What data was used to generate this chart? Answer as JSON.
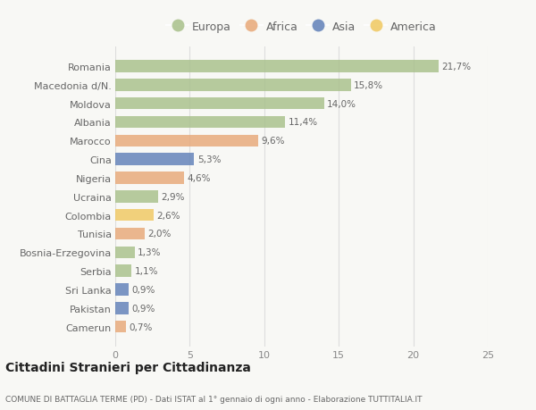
{
  "categories": [
    "Romania",
    "Macedonia d/N.",
    "Moldova",
    "Albania",
    "Marocco",
    "Cina",
    "Nigeria",
    "Ucraina",
    "Colombia",
    "Tunisia",
    "Bosnia-Erzegovina",
    "Serbia",
    "Sri Lanka",
    "Pakistan",
    "Camerun"
  ],
  "values": [
    21.7,
    15.8,
    14.0,
    11.4,
    9.6,
    5.3,
    4.6,
    2.9,
    2.6,
    2.0,
    1.3,
    1.1,
    0.9,
    0.9,
    0.7
  ],
  "labels": [
    "21,7%",
    "15,8%",
    "14,0%",
    "11,4%",
    "9,6%",
    "5,3%",
    "4,6%",
    "2,9%",
    "2,6%",
    "2,0%",
    "1,3%",
    "1,1%",
    "0,9%",
    "0,9%",
    "0,7%"
  ],
  "continents": [
    "Europa",
    "Europa",
    "Europa",
    "Europa",
    "Africa",
    "Asia",
    "Africa",
    "Europa",
    "America",
    "Africa",
    "Europa",
    "Europa",
    "Asia",
    "Asia",
    "Africa"
  ],
  "colors": {
    "Europa": "#a8c08a",
    "Africa": "#e8a878",
    "Asia": "#6080b8",
    "America": "#f0c860"
  },
  "legend_order": [
    "Europa",
    "Africa",
    "Asia",
    "America"
  ],
  "title": "Cittadini Stranieri per Cittadinanza",
  "subtitle": "COMUNE DI BATTAGLIA TERME (PD) - Dati ISTAT al 1° gennaio di ogni anno - Elaborazione TUTTITALIA.IT",
  "xlim": [
    0,
    25
  ],
  "xticks": [
    0,
    5,
    10,
    15,
    20,
    25
  ],
  "background_color": "#f8f8f5",
  "grid_color": "#dddddd"
}
